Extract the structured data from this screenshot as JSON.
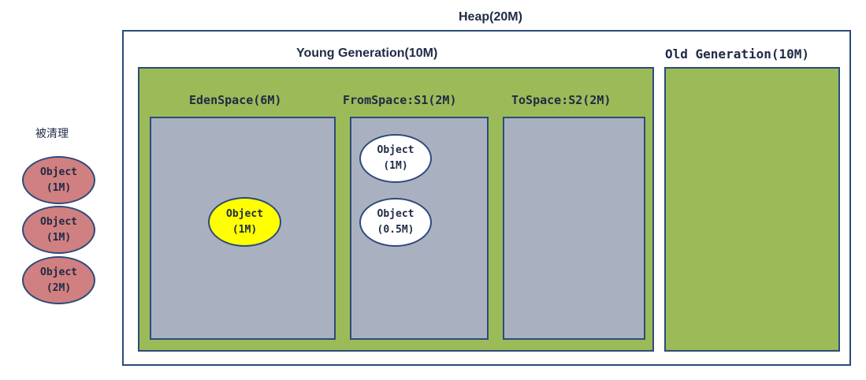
{
  "heap": {
    "title": "Heap(20M)"
  },
  "young": {
    "title": "Young Generation(10M)"
  },
  "old": {
    "title": "Old Generation(10M)"
  },
  "eden": {
    "title": "EdenSpace(6M)",
    "objects": [
      {
        "line1": "Object",
        "line2": "(1M)"
      }
    ]
  },
  "from": {
    "title": "FromSpace:S1(2M)",
    "objects": [
      {
        "line1": "Object",
        "line2": "(1M)"
      },
      {
        "line1": "Object",
        "line2": "(0.5M)"
      }
    ]
  },
  "to": {
    "title": "ToSpace:S2(2M)"
  },
  "cleared": {
    "label": "被清理",
    "objects": [
      {
        "line1": "Object",
        "line2": "(1M)"
      },
      {
        "line1": "Object",
        "line2": "(1M)"
      },
      {
        "line1": "Object",
        "line2": "(2M)"
      }
    ]
  },
  "colors": {
    "generation_fill": "#9bbb59",
    "space_fill": "#a9b1c1",
    "border": "#2e4a7a",
    "eden_object": "#ffff00",
    "from_object": "#ffffff",
    "cleared_object": "#d08080"
  }
}
